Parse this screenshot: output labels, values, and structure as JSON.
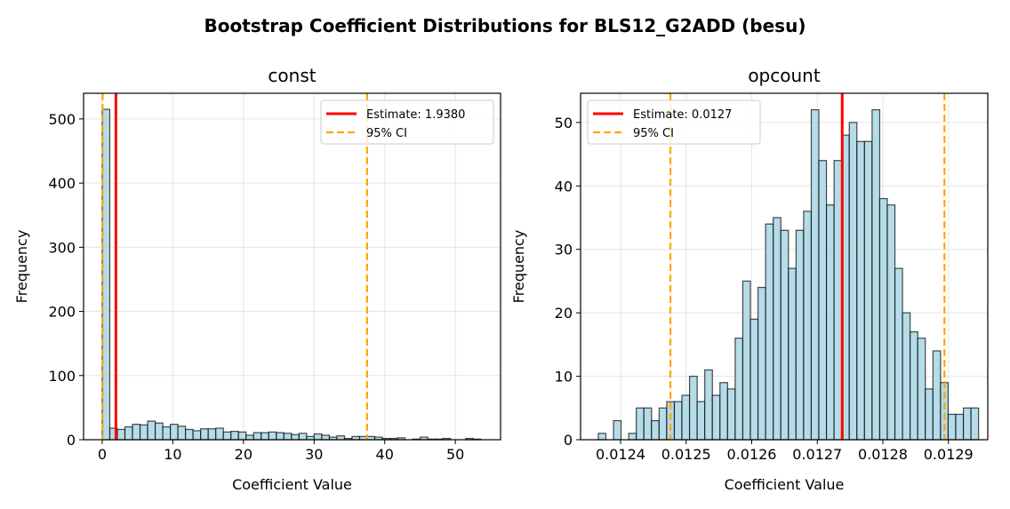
{
  "figure_title": "Bootstrap Coefficient Distributions for BLS12_G2ADD (besu)",
  "chart_data": [
    {
      "type": "bar",
      "title": "const",
      "xlabel": "Coefficient Value",
      "ylabel": "Frequency",
      "xlim": [
        -2.64,
        56.4
      ],
      "ylim": [
        0,
        540
      ],
      "xticks": [
        0,
        10,
        20,
        30,
        40,
        50
      ],
      "xtick_labels": [
        "0",
        "10",
        "20",
        "30",
        "40",
        "50"
      ],
      "yticks": [
        0,
        100,
        200,
        300,
        400,
        500
      ],
      "ytick_labels": [
        "0",
        "100",
        "200",
        "300",
        "400",
        "500"
      ],
      "grid": true,
      "bin_start": 0.0,
      "bin_end": 53.6,
      "counts": [
        515,
        18,
        16,
        20,
        24,
        23,
        29,
        26,
        20,
        24,
        21,
        16,
        14,
        17,
        17,
        18,
        12,
        13,
        12,
        7,
        11,
        11,
        12,
        11,
        10,
        8,
        10,
        5,
        9,
        7,
        4,
        6,
        2,
        5,
        5,
        5,
        4,
        2,
        2,
        3,
        0,
        1,
        4,
        1,
        1,
        2,
        0,
        0,
        2,
        1
      ],
      "bar_color": "#add8e6",
      "edge_color": "#000000",
      "estimate": 1.938,
      "ci": [
        0.05,
        37.5
      ],
      "legend": {
        "position": "upper-right",
        "estimate_label": "Estimate: 1.9380",
        "ci_label": "95% CI"
      },
      "estimate_color": "#ff0000",
      "ci_color": "#ffa500"
    },
    {
      "type": "bar",
      "title": "opcount",
      "xlabel": "Coefficient Value",
      "ylabel": "Frequency",
      "xlim": [
        0.012339,
        0.01296
      ],
      "ylim": [
        0,
        54.6
      ],
      "xticks": [
        0.0124,
        0.0125,
        0.0126,
        0.0127,
        0.0128,
        0.0129
      ],
      "xtick_labels": [
        "0.0124",
        "0.0125",
        "0.0126",
        "0.0127",
        "0.0128",
        "0.0129"
      ],
      "yticks": [
        0,
        10,
        20,
        30,
        40,
        50
      ],
      "ytick_labels": [
        "0",
        "10",
        "20",
        "30",
        "40",
        "50"
      ],
      "grid": true,
      "bin_start": 0.012366,
      "bin_end": 0.012946,
      "counts": [
        1,
        0,
        3,
        0,
        1,
        5,
        5,
        3,
        5,
        6,
        6,
        7,
        10,
        6,
        11,
        7,
        9,
        8,
        16,
        25,
        19,
        24,
        34,
        35,
        33,
        27,
        33,
        36,
        52,
        44,
        37,
        44,
        48,
        50,
        47,
        47,
        52,
        38,
        37,
        27,
        20,
        17,
        16,
        8,
        14,
        9,
        4,
        4,
        5,
        5
      ],
      "bar_color": "#add8e6",
      "edge_color": "#000000",
      "estimate": 0.012738,
      "ci": [
        0.012476,
        0.012894
      ],
      "legend": {
        "position": "upper-left",
        "estimate_label": "Estimate: 0.0127",
        "ci_label": "95% CI"
      },
      "estimate_color": "#ff0000",
      "ci_color": "#ffa500"
    }
  ]
}
